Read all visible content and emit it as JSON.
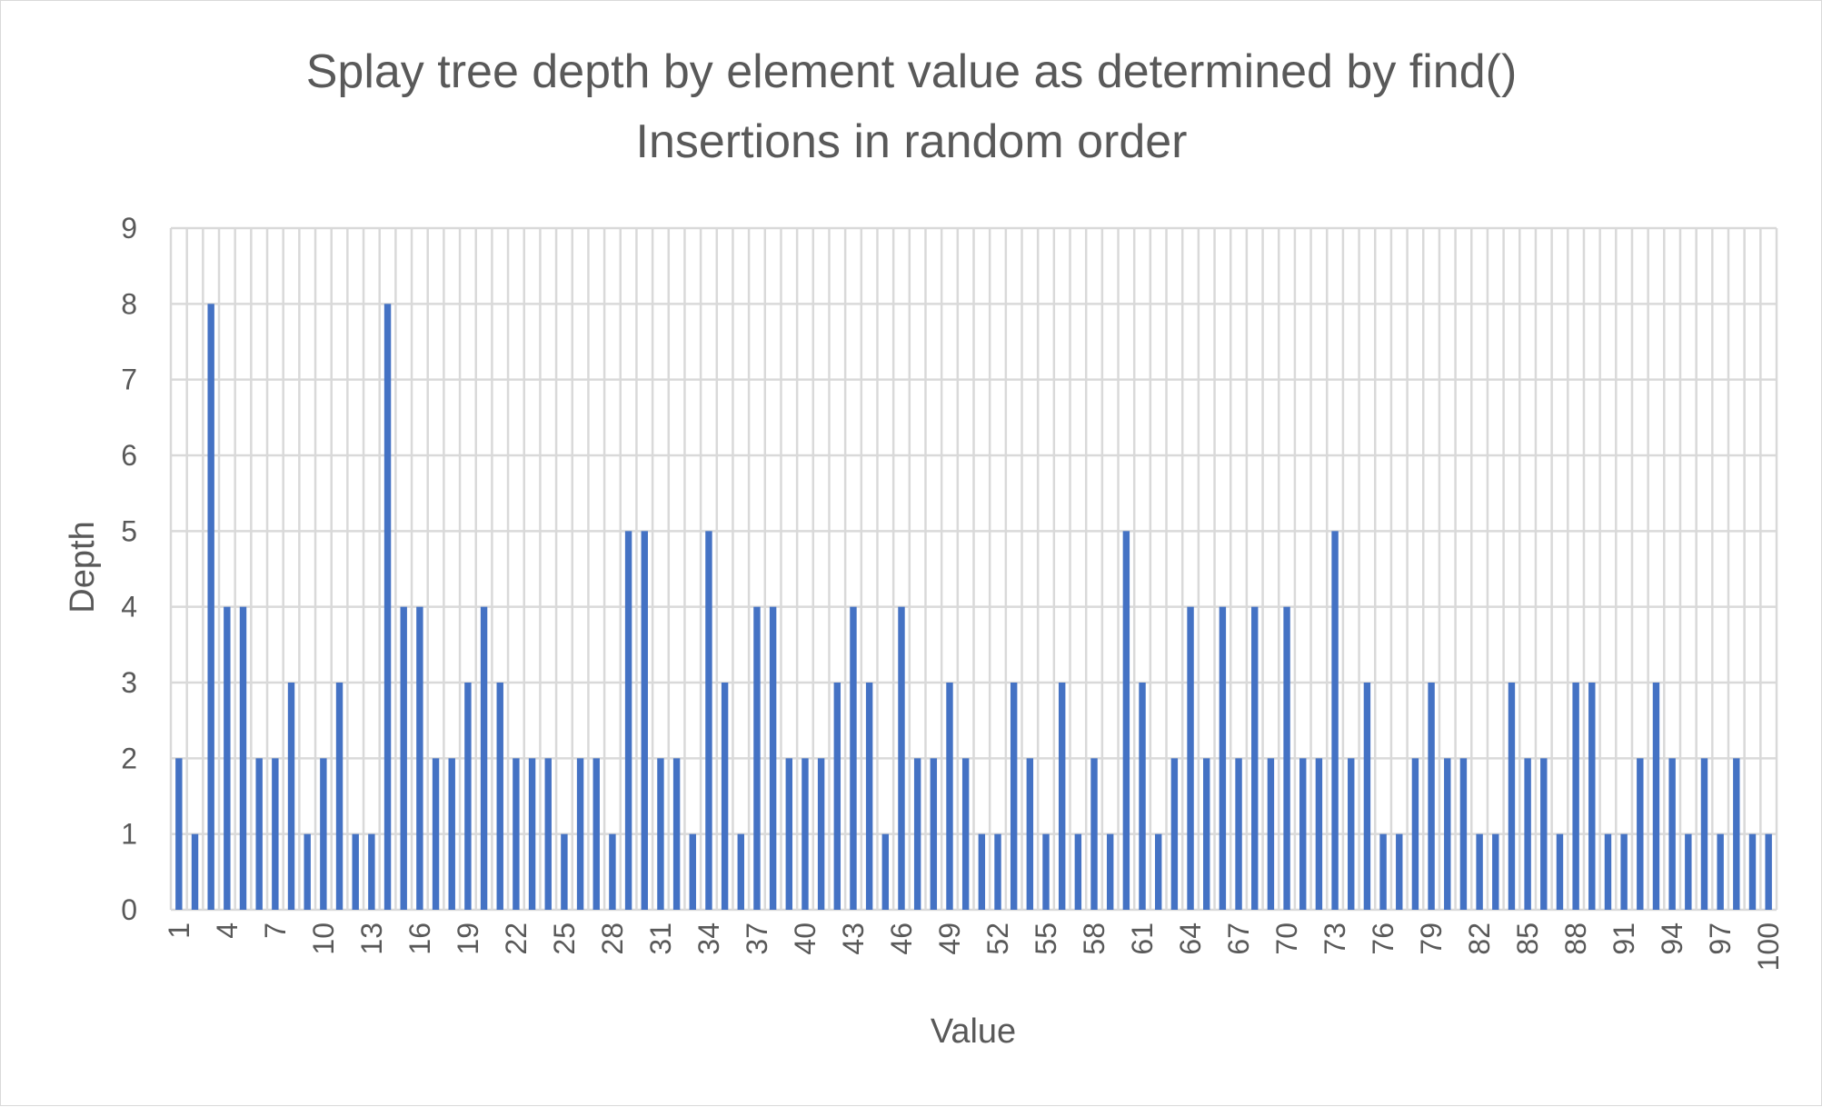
{
  "chart_data": {
    "type": "bar",
    "title": "Splay tree depth by element value as determined by find()",
    "subtitle": "Insertions in random order",
    "xlabel": "Value",
    "ylabel": "Depth",
    "ylim": [
      0,
      9
    ],
    "yticks": [
      "0",
      "1",
      "2",
      "3",
      "4",
      "5",
      "6",
      "7",
      "8",
      "9"
    ],
    "x_tick_labels": [
      "1",
      "4",
      "7",
      "10",
      "13",
      "16",
      "19",
      "22",
      "25",
      "28",
      "31",
      "34",
      "37",
      "40",
      "43",
      "46",
      "49",
      "52",
      "55",
      "58",
      "61",
      "64",
      "67",
      "70",
      "73",
      "76",
      "79",
      "82",
      "85",
      "88",
      "91",
      "94",
      "97",
      "100"
    ],
    "grid": true,
    "legend": "none",
    "colors": {
      "bar": "#4472c4",
      "grid": "#d9d9d9",
      "text": "#595959"
    },
    "categories": [
      1,
      2,
      3,
      4,
      5,
      6,
      7,
      8,
      9,
      10,
      11,
      12,
      13,
      14,
      15,
      16,
      17,
      18,
      19,
      20,
      21,
      22,
      23,
      24,
      25,
      26,
      27,
      28,
      29,
      30,
      31,
      32,
      33,
      34,
      35,
      36,
      37,
      38,
      39,
      40,
      41,
      42,
      43,
      44,
      45,
      46,
      47,
      48,
      49,
      50,
      51,
      52,
      53,
      54,
      55,
      56,
      57,
      58,
      59,
      60,
      61,
      62,
      63,
      64,
      65,
      66,
      67,
      68,
      69,
      70,
      71,
      72,
      73,
      74,
      75,
      76,
      77,
      78,
      79,
      80,
      81,
      82,
      83,
      84,
      85,
      86,
      87,
      88,
      89,
      90,
      91,
      92,
      93,
      94,
      95,
      96,
      97,
      98,
      99,
      100
    ],
    "values": [
      2,
      1,
      8,
      4,
      4,
      2,
      2,
      3,
      1,
      2,
      3,
      1,
      1,
      8,
      4,
      4,
      2,
      2,
      3,
      4,
      3,
      2,
      2,
      2,
      1,
      2,
      2,
      1,
      5,
      5,
      2,
      2,
      1,
      5,
      3,
      1,
      4,
      4,
      2,
      2,
      2,
      3,
      4,
      3,
      1,
      4,
      2,
      2,
      3,
      2,
      1,
      1,
      3,
      2,
      1,
      3,
      1,
      2,
      1,
      5,
      3,
      1,
      2,
      4,
      2,
      4,
      2,
      4,
      2,
      4,
      2,
      2,
      5,
      2,
      3,
      1,
      1,
      2,
      3,
      2,
      2,
      1,
      1,
      3,
      2,
      2,
      1,
      3,
      3,
      1,
      1,
      2,
      3,
      2,
      1,
      2,
      1,
      2,
      1,
      1
    ]
  }
}
